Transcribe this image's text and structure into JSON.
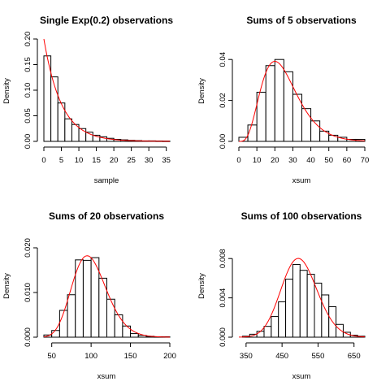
{
  "colors": {
    "background": "#ffffff",
    "bars": "#ffffff",
    "bar_stroke": "#000000",
    "curve": "#ff0000"
  },
  "chart_data": [
    {
      "type": "bar",
      "title": "Single Exp(0.2) observations",
      "xlabel": "sample",
      "ylabel": "Density",
      "xlim": [
        0,
        36
      ],
      "ylim": [
        0,
        0.2
      ],
      "xticks": [
        0,
        5,
        10,
        15,
        20,
        25,
        30,
        35
      ],
      "yticks": [
        0,
        0.05,
        0.1,
        0.15,
        0.2
      ],
      "xtick_labels": [
        "0",
        "5",
        "10",
        "15",
        "20",
        "25",
        "30",
        "35"
      ],
      "ytick_labels": [
        "0.00",
        "0.05",
        "0.10",
        "0.15",
        "0.20"
      ],
      "bin_width": 2,
      "bins_start": [
        0,
        2,
        4,
        6,
        8,
        10,
        12,
        14,
        16,
        18,
        20,
        22,
        24,
        26,
        28,
        30,
        32,
        34
      ],
      "values": [
        0.167,
        0.126,
        0.075,
        0.044,
        0.033,
        0.025,
        0.018,
        0.012,
        0.009,
        0.006,
        0.004,
        0.003,
        0.002,
        0.0015,
        0.001,
        0.001,
        0.0008,
        0.0006
      ],
      "curve": {
        "name": "density",
        "kind": "exp",
        "rate": 0.2
      }
    },
    {
      "type": "bar",
      "title": "Sums of 5 observations",
      "xlabel": "xsum",
      "ylabel": "Density",
      "xlim": [
        0,
        70
      ],
      "ylim": [
        0,
        0.05
      ],
      "xticks": [
        0,
        10,
        20,
        30,
        40,
        50,
        60,
        70
      ],
      "yticks": [
        0,
        0.02,
        0.04
      ],
      "xtick_labels": [
        "0",
        "10",
        "20",
        "30",
        "40",
        "50",
        "60",
        "70"
      ],
      "ytick_labels": [
        "0.00",
        "0.02",
        "0.04"
      ],
      "bin_width": 5,
      "bins_start": [
        0,
        5,
        10,
        15,
        20,
        25,
        30,
        35,
        40,
        45,
        50,
        55,
        60,
        65
      ],
      "values": [
        0.002,
        0.008,
        0.024,
        0.037,
        0.04,
        0.034,
        0.023,
        0.016,
        0.01,
        0.005,
        0.003,
        0.002,
        0.001,
        0.001
      ],
      "curve": {
        "name": "density",
        "kind": "gamma",
        "shape": 5,
        "rate": 0.2
      }
    },
    {
      "type": "bar",
      "title": "Sums of 20 observations",
      "xlabel": "xsum",
      "ylabel": "Density",
      "xlim": [
        40,
        200
      ],
      "ylim": [
        0,
        0.022
      ],
      "xticks": [
        50,
        100,
        150,
        200
      ],
      "yticks": [
        0,
        0.01,
        0.02
      ],
      "xtick_labels": [
        "50",
        "100",
        "150",
        "200"
      ],
      "ytick_labels": [
        "0.000",
        "0.010",
        "0.020"
      ],
      "bin_width": 10,
      "bins_start": [
        40,
        50,
        60,
        70,
        80,
        90,
        100,
        110,
        120,
        130,
        140,
        150,
        160,
        170,
        180,
        190
      ],
      "values": [
        0.0005,
        0.0015,
        0.006,
        0.0095,
        0.0173,
        0.0172,
        0.0178,
        0.0132,
        0.0085,
        0.005,
        0.0025,
        0.0008,
        0.0004,
        0.0002,
        0.0001,
        0.0001
      ],
      "curve": {
        "name": "density",
        "kind": "gamma",
        "shape": 20,
        "rate": 0.2
      }
    },
    {
      "type": "bar",
      "title": "Sums of 100 observations",
      "xlabel": "xsum",
      "ylabel": "Density",
      "xlim": [
        330,
        680
      ],
      "ylim": [
        0,
        0.01
      ],
      "xticks": [
        350,
        450,
        550,
        650
      ],
      "yticks": [
        0,
        0.004,
        0.008
      ],
      "xtick_labels": [
        "350",
        "450",
        "550",
        "650"
      ],
      "ytick_labels": [
        "0.000",
        "0.004",
        "0.008"
      ],
      "bin_width": 20,
      "bins_start": [
        340,
        360,
        380,
        400,
        420,
        440,
        460,
        480,
        500,
        520,
        540,
        560,
        580,
        600,
        620,
        640,
        660
      ],
      "values": [
        0.0001,
        0.0003,
        0.0006,
        0.0011,
        0.0021,
        0.0036,
        0.0059,
        0.0074,
        0.0068,
        0.0064,
        0.0055,
        0.0043,
        0.0031,
        0.0013,
        0.0005,
        0.0002,
        0.0001
      ],
      "curve": {
        "name": "density",
        "kind": "gamma",
        "shape": 100,
        "rate": 0.2
      }
    }
  ]
}
